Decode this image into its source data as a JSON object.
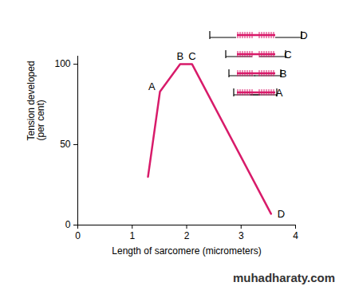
{
  "chart_data": {
    "type": "line",
    "x_label": "Length of sarcomere (micrometers)",
    "y_label": "Tension developed\n(per cent)",
    "x": [
      1.29,
      1.51,
      1.88,
      2.1,
      3.55
    ],
    "values": [
      30,
      83,
      100,
      100,
      7
    ],
    "color": "#d81b6a",
    "xlim": [
      0,
      4
    ],
    "xticks": [
      0,
      1,
      2,
      3,
      4
    ],
    "ylim": [
      0,
      105
    ],
    "yticks": [
      0,
      50,
      100
    ],
    "annotations": [
      {
        "text": "A",
        "x": 1.51,
        "y": 83
      },
      {
        "text": "B",
        "x": 1.88,
        "y": 100
      },
      {
        "text": "C",
        "x": 2.1,
        "y": 100
      },
      {
        "text": "D",
        "x": 3.55,
        "y": 7
      }
    ],
    "diagram_labels": [
      "D",
      "C",
      "B",
      "A"
    ],
    "caption": "muhadharaty.com"
  }
}
